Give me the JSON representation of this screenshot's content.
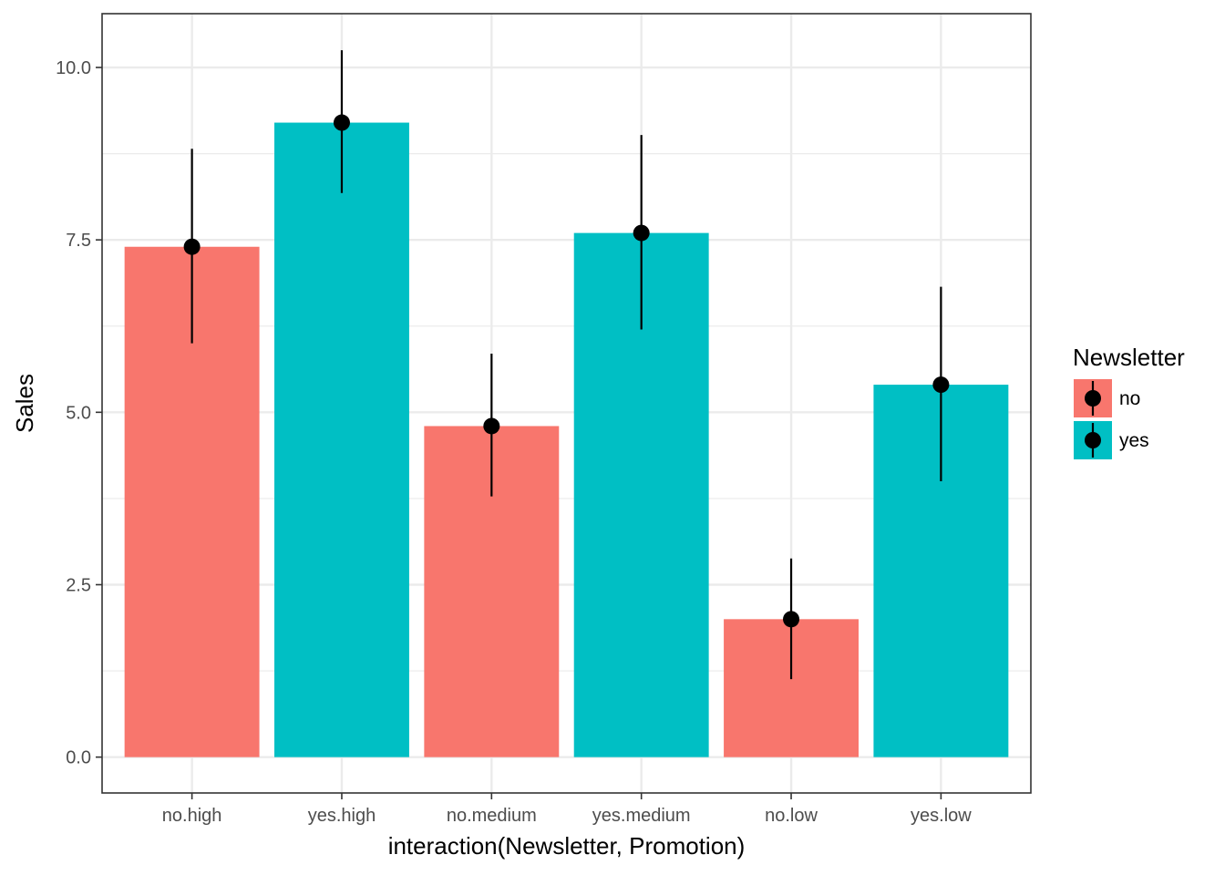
{
  "chart_data": {
    "type": "bar",
    "xlabel": "interaction(Newsletter, Promotion)",
    "ylabel": "Sales",
    "ylim": [
      -0.52,
      10.78
    ],
    "yticks": [
      0.0,
      2.5,
      5.0,
      7.5,
      10.0
    ],
    "ytick_labels": [
      "0.0",
      "2.5",
      "5.0",
      "7.5",
      "10.0"
    ],
    "categories": [
      "no.high",
      "yes.high",
      "no.medium",
      "yes.medium",
      "no.low",
      "yes.low"
    ],
    "values": [
      7.4,
      9.2,
      4.8,
      7.6,
      2.0,
      5.4
    ],
    "error_low": [
      6.0,
      8.18,
      3.78,
      6.2,
      1.13,
      4.0
    ],
    "error_high": [
      8.82,
      10.25,
      5.85,
      9.02,
      2.88,
      6.82
    ],
    "group": [
      "no",
      "yes",
      "no",
      "yes",
      "no",
      "yes"
    ],
    "legend": {
      "title": "Newsletter",
      "position": "right",
      "entries": [
        {
          "label": "no",
          "color": "#F8766D"
        },
        {
          "label": "yes",
          "color": "#00BFC4"
        }
      ]
    },
    "grid": true,
    "theme": "bw"
  }
}
